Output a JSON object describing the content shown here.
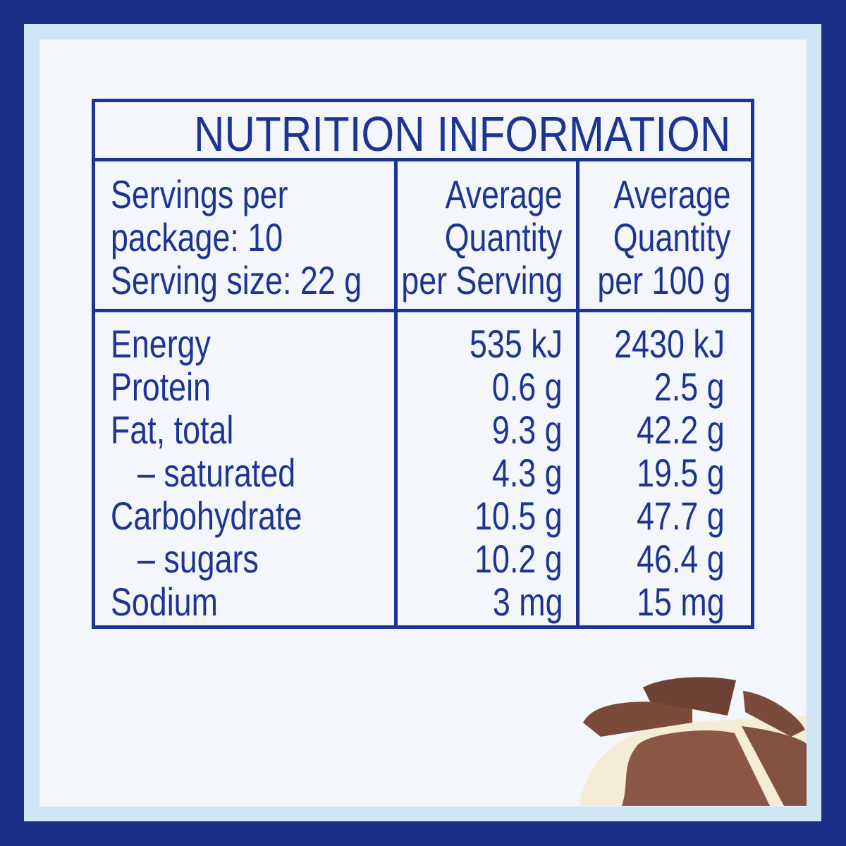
{
  "title": "NUTRITION INFORMATION",
  "serving_info": [
    "Servings per",
    "package: 10",
    "Serving size: 22 g"
  ],
  "col_per_serving_header": [
    "Average",
    "Quantity",
    "per Serving"
  ],
  "col_per_100g_header": [
    "Average",
    "Quantity",
    "per 100 g"
  ],
  "rows": [
    {
      "name": "Energy",
      "per_serving": "535 kJ",
      "per_100g": "2430 kJ"
    },
    {
      "name": "Protein",
      "per_serving": "0.6 g",
      "per_100g": "2.5 g"
    },
    {
      "name": "Fat, total",
      "per_serving": "9.3 g",
      "per_100g": "42.2 g"
    },
    {
      "name": "– saturated",
      "per_serving": "4.3 g",
      "per_100g": "19.5 g"
    },
    {
      "name": "Carbohydrate",
      "per_serving": "10.5 g",
      "per_100g": "47.7 g"
    },
    {
      "name": "– sugars",
      "per_serving": "10.2 g",
      "per_100g": "46.4 g"
    },
    {
      "name": "Sodium",
      "per_serving": "3 mg",
      "per_100g": "15 mg"
    }
  ],
  "colors": {
    "frame": "#1c2f87",
    "inner_border": "#cfe6f5",
    "background": "#f3f6fb",
    "text": "#1d3591"
  }
}
